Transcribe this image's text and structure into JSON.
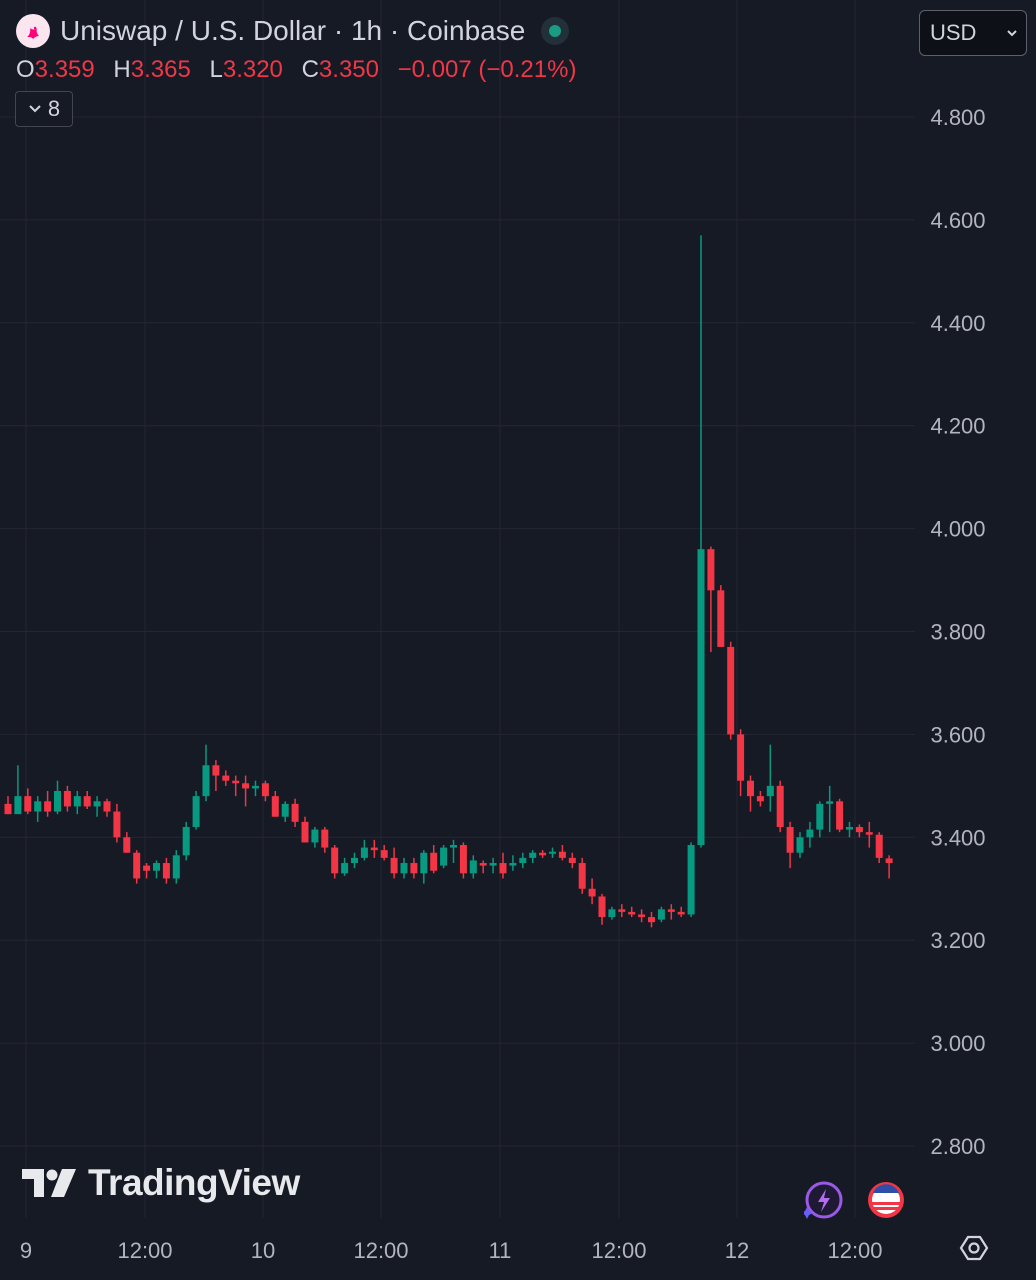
{
  "header": {
    "title": "Uniswap / U.S. Dollar · 1h · Coinbase",
    "status_dot_color": "#1a9b84"
  },
  "ohlc": {
    "o_label": "O",
    "o_value": "3.359",
    "h_label": "H",
    "h_value": "3.365",
    "l_label": "L",
    "l_value": "3.320",
    "c_label": "C",
    "c_value": "3.350",
    "change": "−0.007 (−0.21%)"
  },
  "indicators_button": {
    "count": "8"
  },
  "currency_select": {
    "value": "USD"
  },
  "branding": {
    "name": "TradingView"
  },
  "colors": {
    "up": "#089981",
    "down": "#f23645",
    "background": "#161a25",
    "grid": "#242733",
    "axis_text": "#b2b5be"
  },
  "chart_data": {
    "type": "candlestick",
    "title": "Uniswap / U.S. Dollar · 1h · Coinbase",
    "ylim": [
      2.7,
      4.9
    ],
    "y_ticks": [
      "4.800",
      "4.600",
      "4.400",
      "4.200",
      "4.000",
      "3.800",
      "3.600",
      "3.400",
      "3.200",
      "3.000",
      "2.800"
    ],
    "x_ticks": [
      "9",
      "12:00",
      "10",
      "12:00",
      "11",
      "12:00",
      "12",
      "12:00"
    ],
    "grid": true,
    "candles": [
      [
        3.465,
        3.48,
        3.445,
        3.445
      ],
      [
        3.445,
        3.54,
        3.45,
        3.48
      ],
      [
        3.48,
        3.495,
        3.445,
        3.45
      ],
      [
        3.45,
        3.48,
        3.43,
        3.47
      ],
      [
        3.47,
        3.49,
        3.44,
        3.45
      ],
      [
        3.45,
        3.51,
        3.445,
        3.49
      ],
      [
        3.49,
        3.5,
        3.45,
        3.46
      ],
      [
        3.46,
        3.49,
        3.445,
        3.48
      ],
      [
        3.48,
        3.49,
        3.455,
        3.46
      ],
      [
        3.46,
        3.48,
        3.44,
        3.47
      ],
      [
        3.47,
        3.475,
        3.44,
        3.45
      ],
      [
        3.45,
        3.465,
        3.39,
        3.4
      ],
      [
        3.4,
        3.41,
        3.37,
        3.37
      ],
      [
        3.37,
        3.375,
        3.31,
        3.32
      ],
      [
        3.345,
        3.35,
        3.32,
        3.335
      ],
      [
        3.335,
        3.355,
        3.32,
        3.35
      ],
      [
        3.35,
        3.36,
        3.31,
        3.32
      ],
      [
        3.32,
        3.375,
        3.31,
        3.365
      ],
      [
        3.365,
        3.43,
        3.355,
        3.42
      ],
      [
        3.42,
        3.49,
        3.415,
        3.48
      ],
      [
        3.48,
        3.58,
        3.47,
        3.54
      ],
      [
        3.54,
        3.55,
        3.49,
        3.52
      ],
      [
        3.52,
        3.53,
        3.5,
        3.51
      ],
      [
        3.51,
        3.52,
        3.48,
        3.505
      ],
      [
        3.505,
        3.52,
        3.46,
        3.495
      ],
      [
        3.495,
        3.51,
        3.48,
        3.5
      ],
      [
        3.505,
        3.51,
        3.47,
        3.48
      ],
      [
        3.48,
        3.49,
        3.44,
        3.44
      ],
      [
        3.44,
        3.47,
        3.43,
        3.465
      ],
      [
        3.465,
        3.475,
        3.42,
        3.43
      ],
      [
        3.43,
        3.44,
        3.39,
        3.39
      ],
      [
        3.39,
        3.42,
        3.38,
        3.415
      ],
      [
        3.415,
        3.42,
        3.37,
        3.38
      ],
      [
        3.38,
        3.385,
        3.32,
        3.33
      ],
      [
        3.33,
        3.36,
        3.325,
        3.35
      ],
      [
        3.35,
        3.37,
        3.34,
        3.36
      ],
      [
        3.36,
        3.395,
        3.355,
        3.38
      ],
      [
        3.38,
        3.395,
        3.36,
        3.375
      ],
      [
        3.375,
        3.385,
        3.355,
        3.36
      ],
      [
        3.36,
        3.38,
        3.32,
        3.33
      ],
      [
        3.33,
        3.36,
        3.32,
        3.35
      ],
      [
        3.35,
        3.36,
        3.32,
        3.33
      ],
      [
        3.33,
        3.375,
        3.31,
        3.37
      ],
      [
        3.37,
        3.385,
        3.33,
        3.335
      ],
      [
        3.345,
        3.385,
        3.34,
        3.38
      ],
      [
        3.38,
        3.395,
        3.35,
        3.385
      ],
      [
        3.385,
        3.39,
        3.32,
        3.33
      ],
      [
        3.33,
        3.365,
        3.32,
        3.355
      ],
      [
        3.35,
        3.355,
        3.33,
        3.345
      ],
      [
        3.345,
        3.36,
        3.33,
        3.35
      ],
      [
        3.35,
        3.37,
        3.32,
        3.33
      ],
      [
        3.345,
        3.365,
        3.335,
        3.35
      ],
      [
        3.35,
        3.37,
        3.34,
        3.36
      ],
      [
        3.36,
        3.375,
        3.35,
        3.37
      ],
      [
        3.37,
        3.375,
        3.36,
        3.365
      ],
      [
        3.368,
        3.38,
        3.36,
        3.372
      ],
      [
        3.372,
        3.385,
        3.355,
        3.36
      ],
      [
        3.36,
        3.37,
        3.34,
        3.35
      ],
      [
        3.35,
        3.36,
        3.29,
        3.3
      ],
      [
        3.3,
        3.32,
        3.27,
        3.285
      ],
      [
        3.285,
        3.29,
        3.23,
        3.245
      ],
      [
        3.245,
        3.265,
        3.24,
        3.26
      ],
      [
        3.26,
        3.27,
        3.245,
        3.255
      ],
      [
        3.255,
        3.265,
        3.245,
        3.25
      ],
      [
        3.25,
        3.26,
        3.235,
        3.245
      ],
      [
        3.245,
        3.255,
        3.225,
        3.235
      ],
      [
        3.24,
        3.265,
        3.235,
        3.26
      ],
      [
        3.26,
        3.27,
        3.24,
        3.255
      ],
      [
        3.255,
        3.265,
        3.245,
        3.25
      ],
      [
        3.25,
        3.39,
        3.245,
        3.385
      ],
      [
        3.385,
        4.57,
        3.38,
        3.96
      ],
      [
        3.96,
        3.965,
        3.76,
        3.88
      ],
      [
        3.88,
        3.89,
        3.77,
        3.77
      ],
      [
        3.77,
        3.78,
        3.59,
        3.6
      ],
      [
        3.6,
        3.61,
        3.48,
        3.51
      ],
      [
        3.51,
        3.52,
        3.45,
        3.48
      ],
      [
        3.48,
        3.49,
        3.46,
        3.47
      ],
      [
        3.48,
        3.58,
        3.45,
        3.5
      ],
      [
        3.5,
        3.51,
        3.41,
        3.42
      ],
      [
        3.42,
        3.43,
        3.34,
        3.37
      ],
      [
        3.37,
        3.41,
        3.36,
        3.4
      ],
      [
        3.4,
        3.43,
        3.38,
        3.415
      ],
      [
        3.415,
        3.47,
        3.4,
        3.465
      ],
      [
        3.465,
        3.5,
        3.41,
        3.47
      ],
      [
        3.47,
        3.475,
        3.41,
        3.415
      ],
      [
        3.415,
        3.43,
        3.4,
        3.42
      ],
      [
        3.42,
        3.425,
        3.4,
        3.41
      ],
      [
        3.41,
        3.43,
        3.38,
        3.405
      ],
      [
        3.405,
        3.41,
        3.35,
        3.36
      ],
      [
        3.359,
        3.365,
        3.32,
        3.35
      ]
    ]
  }
}
